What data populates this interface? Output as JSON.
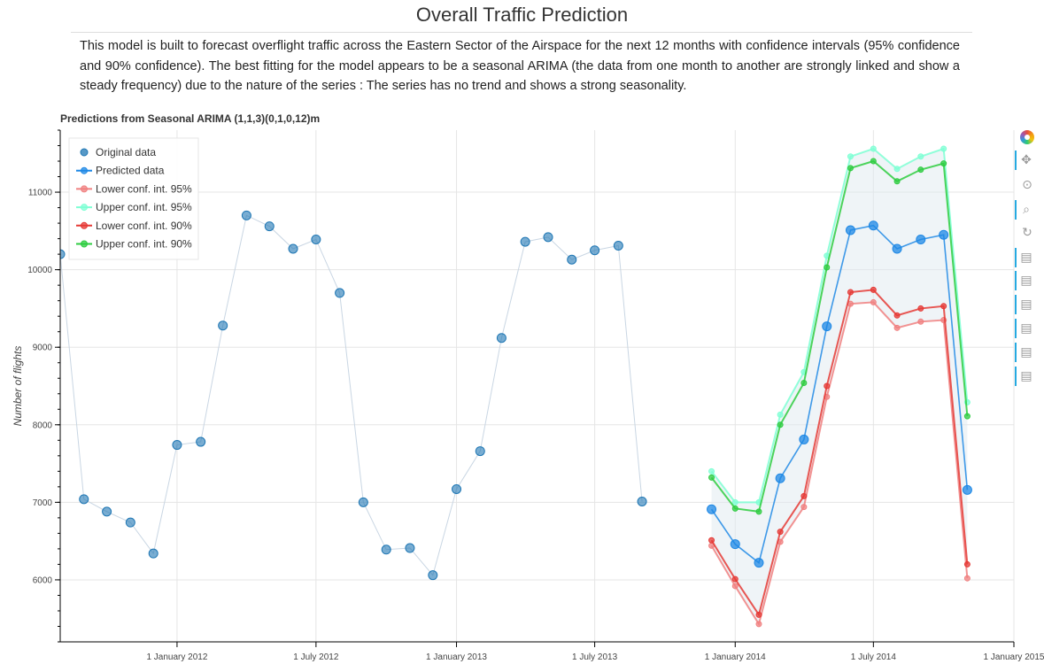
{
  "page": {
    "title": "Overall Traffic Prediction",
    "description": "This model is built to forecast overflight traffic across the Eastern Sector of the Airspace for the next 12 months with confidence intervals (95% confidence and 90% confidence). The best fitting for the model appears to be a seasonal ARIMA (the data from one month to another are strongly linked and show a steady frequency) due to the nature of the series : The series has no trend and shows a strong seasonality."
  },
  "toolbar": {
    "tools": [
      {
        "name": "bokeh-logo-icon",
        "glyph": ""
      },
      {
        "name": "pan-tool-icon",
        "glyph": "✥"
      },
      {
        "name": "wheel-zoom-icon",
        "glyph": "⊙"
      },
      {
        "name": "box-zoom-icon",
        "glyph": "⌕"
      },
      {
        "name": "reset-tool-icon",
        "glyph": "↻"
      },
      {
        "name": "hover-tool-icon-1",
        "glyph": "▤"
      },
      {
        "name": "hover-tool-icon-2",
        "glyph": "▤"
      },
      {
        "name": "hover-tool-icon-3",
        "glyph": "▤"
      },
      {
        "name": "hover-tool-icon-4",
        "glyph": "▤"
      },
      {
        "name": "hover-tool-icon-5",
        "glyph": "▤"
      },
      {
        "name": "hover-tool-icon-6",
        "glyph": "▤"
      }
    ]
  },
  "chart_data": {
    "type": "line",
    "title": "Predictions from Seasonal ARIMA (1,1,3)(0,1,0,12)m",
    "xlabel": "",
    "ylabel": "Number of flights",
    "x_axis_type": "datetime",
    "xlim": [
      "2011-08-01",
      "2015-01-01"
    ],
    "ylim": [
      5200,
      11800
    ],
    "x_ticks": [
      {
        "date": "2012-01-01",
        "label": "1 January 2012"
      },
      {
        "date": "2012-07-01",
        "label": "1 July 2012"
      },
      {
        "date": "2013-01-01",
        "label": "1 January 2013"
      },
      {
        "date": "2013-07-01",
        "label": "1 July 2013"
      },
      {
        "date": "2014-01-01",
        "label": "1 January 2014"
      },
      {
        "date": "2014-07-01",
        "label": "1 July 2014"
      },
      {
        "date": "2015-01-01",
        "label": "1 January 2015"
      }
    ],
    "y_ticks": [
      6000,
      7000,
      8000,
      9000,
      10000,
      11000
    ],
    "grid": true,
    "legend_position": "top-left",
    "series": [
      {
        "name": "Original data",
        "color": "#1f77b4",
        "marker": "circle",
        "line_color": "#c9d6e3",
        "x": [
          "2011-08-01",
          "2011-09-01",
          "2011-10-01",
          "2011-11-01",
          "2011-12-01",
          "2012-01-01",
          "2012-02-01",
          "2012-03-01",
          "2012-04-01",
          "2012-05-01",
          "2012-06-01",
          "2012-07-01",
          "2012-08-01",
          "2012-09-01",
          "2012-10-01",
          "2012-11-01",
          "2012-12-01",
          "2013-01-01",
          "2013-02-01",
          "2013-03-01",
          "2013-04-01",
          "2013-05-01",
          "2013-06-01",
          "2013-07-01",
          "2013-08-01",
          "2013-09-01",
          "2013-10-01",
          "2013-11-01"
        ],
        "values": [
          10200,
          7040,
          6880,
          6740,
          6340,
          7740,
          7780,
          9280,
          10700,
          10560,
          10270,
          10390,
          9700,
          7000,
          6390,
          6410,
          6060,
          7170,
          7660,
          9120,
          10360,
          10420,
          10130,
          10250,
          10310,
          7010,
          null,
          null
        ]
      },
      {
        "name": "Predicted data",
        "color": "#1e88e5",
        "marker": "circle-line",
        "x": [
          "2013-12-01",
          "2014-01-01",
          "2014-02-01",
          "2014-03-01",
          "2014-04-01",
          "2014-05-01",
          "2014-06-01",
          "2014-07-01",
          "2014-08-01",
          "2014-09-01",
          "2014-10-01",
          "2014-11-01"
        ],
        "values": [
          6910,
          6460,
          6220,
          7310,
          7810,
          9270,
          10510,
          10570,
          10270,
          10390,
          10450,
          7160
        ]
      },
      {
        "name": "Lower conf. int. 95%",
        "color": "#f08080",
        "marker": "circle-line",
        "x": [
          "2013-12-01",
          "2014-01-01",
          "2014-02-01",
          "2014-03-01",
          "2014-04-01",
          "2014-05-01",
          "2014-06-01",
          "2014-07-01",
          "2014-08-01",
          "2014-09-01",
          "2014-10-01",
          "2014-11-01"
        ],
        "values": [
          6440,
          5920,
          5430,
          6490,
          6940,
          8360,
          9560,
          9580,
          9250,
          9330,
          9350,
          6020
        ]
      },
      {
        "name": "Upper conf. int. 95%",
        "color": "#7fffd4",
        "marker": "circle-line",
        "x": [
          "2013-12-01",
          "2014-01-01",
          "2014-02-01",
          "2014-03-01",
          "2014-04-01",
          "2014-05-01",
          "2014-06-01",
          "2014-07-01",
          "2014-08-01",
          "2014-09-01",
          "2014-10-01",
          "2014-11-01"
        ],
        "values": [
          7400,
          7000,
          7000,
          8130,
          8680,
          10180,
          11460,
          11560,
          11300,
          11460,
          11560,
          8290
        ]
      },
      {
        "name": "Lower conf. int. 90%",
        "color": "#e53935",
        "marker": "circle-line",
        "x": [
          "2013-12-01",
          "2014-01-01",
          "2014-02-01",
          "2014-03-01",
          "2014-04-01",
          "2014-05-01",
          "2014-06-01",
          "2014-07-01",
          "2014-08-01",
          "2014-09-01",
          "2014-10-01",
          "2014-11-01"
        ],
        "values": [
          6510,
          6010,
          5550,
          6620,
          7080,
          8500,
          9710,
          9740,
          9410,
          9500,
          9530,
          6200
        ]
      },
      {
        "name": "Upper conf. int. 90%",
        "color": "#2ecc40",
        "marker": "circle-line",
        "x": [
          "2013-12-01",
          "2014-01-01",
          "2014-02-01",
          "2014-03-01",
          "2014-04-01",
          "2014-05-01",
          "2014-06-01",
          "2014-07-01",
          "2014-08-01",
          "2014-09-01",
          "2014-10-01",
          "2014-11-01"
        ],
        "values": [
          7320,
          6920,
          6880,
          8000,
          8540,
          10030,
          11310,
          11400,
          11140,
          11290,
          11370,
          8110
        ]
      }
    ],
    "band": {
      "color": "#dfe9ef",
      "lower_series": "Lower conf. int. 95%",
      "upper_series": "Upper conf. int. 95%"
    }
  }
}
